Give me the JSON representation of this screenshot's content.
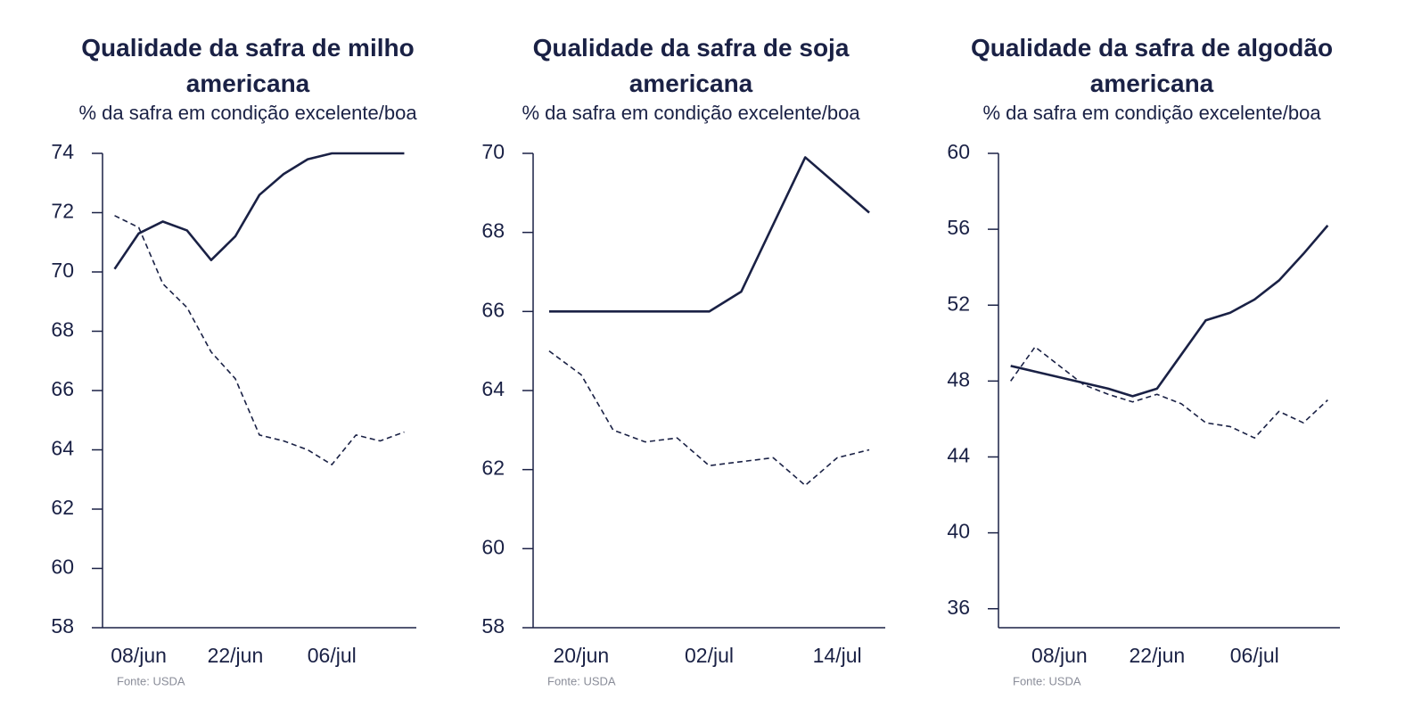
{
  "chart_data": [
    {
      "type": "line",
      "title": "Qualidade da safra de milho americana",
      "subtitle": "% da safra em condição excelente/boa",
      "source": "Fonte: USDA",
      "categories": [
        null,
        "08/jun",
        null,
        null,
        null,
        "22/jun",
        null,
        null,
        null,
        "06/jul",
        null,
        null,
        null
      ],
      "series": [
        {
          "color": "#1a2145",
          "style": "solid",
          "values": [
            70.1,
            71.3,
            71.7,
            71.4,
            70.4,
            71.2,
            72.6,
            73.3,
            73.8,
            74,
            74,
            74,
            74
          ]
        },
        {
          "color": "#1a2145",
          "style": "dashed",
          "values": [
            71.9,
            71.5,
            69.6,
            68.8,
            67.3,
            66.4,
            64.5,
            64.3,
            64.0,
            63.5,
            64.5,
            64.3,
            64.6
          ]
        }
      ],
      "ylim": [
        58,
        74
      ],
      "yticks": [
        58,
        60,
        62,
        64,
        66,
        68,
        70,
        72,
        74
      ]
    },
    {
      "type": "line",
      "title": "Qualidade da safra de soja americana",
      "subtitle": "% da safra em condição excelente/boa",
      "source": "Fonte: USDA",
      "categories": [
        null,
        "20/jun",
        null,
        null,
        null,
        "02/jul",
        null,
        null,
        null,
        "14/jul",
        null
      ],
      "series": [
        {
          "color": "#1a2145",
          "style": "solid",
          "values": [
            66,
            66,
            66,
            66,
            66,
            66,
            66.5,
            68.2,
            69.9,
            69.2,
            68.5
          ]
        },
        {
          "color": "#1a2145",
          "style": "dashed",
          "values": [
            65.0,
            64.4,
            63.0,
            62.7,
            62.8,
            62.1,
            62.2,
            62.3,
            61.6,
            62.3,
            62.5
          ]
        }
      ],
      "ylim": [
        58,
        70
      ],
      "yticks": [
        58,
        60,
        62,
        64,
        66,
        68,
        70
      ]
    },
    {
      "type": "line",
      "title": "Qualidade da safra de algodão americana",
      "subtitle": "% da safra em condição excelente/boa",
      "source": "Fonte: USDA",
      "categories": [
        null,
        null,
        "08/jun",
        null,
        null,
        null,
        "22/jun",
        null,
        null,
        null,
        "06/jul",
        null,
        null,
        null
      ],
      "series": [
        {
          "color": "#1a2145",
          "style": "solid",
          "values": [
            48.8,
            48.5,
            48.2,
            47.9,
            47.6,
            47.2,
            47.6,
            49.4,
            51.2,
            51.6,
            52.3,
            53.3,
            54.7,
            56.2
          ]
        },
        {
          "color": "#1a2145",
          "style": "dashed",
          "values": [
            48.0,
            49.8,
            48.8,
            47.8,
            47.3,
            46.9,
            47.3,
            46.8,
            45.8,
            45.6,
            45.0,
            46.4,
            45.8,
            47.0
          ]
        }
      ],
      "ylim": [
        35,
        60
      ],
      "yticks": [
        36,
        40,
        44,
        48,
        52,
        56,
        60
      ]
    }
  ]
}
